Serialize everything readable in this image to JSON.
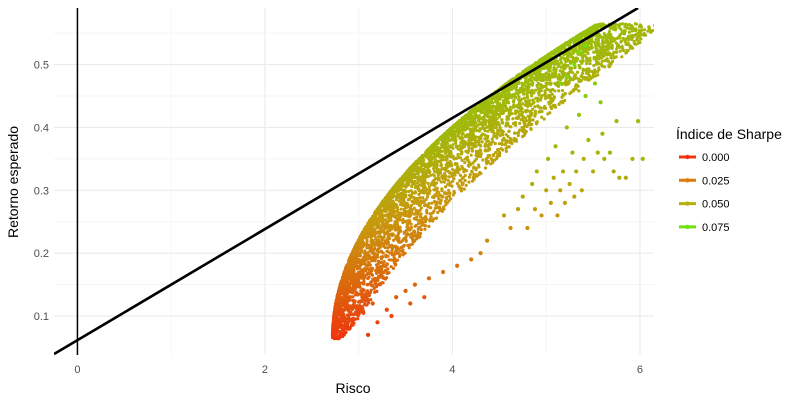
{
  "chart_data": {
    "type": "scatter",
    "xlabel": "Risco",
    "ylabel": "Retorno esperado",
    "xlim": [
      -0.25,
      6.15
    ],
    "ylim": [
      0.038,
      0.59
    ],
    "x_ticks": [
      0,
      2,
      4,
      6
    ],
    "x_tick_labels": [
      "0",
      "2",
      "4",
      "6"
    ],
    "y_ticks": [
      0.1,
      0.2,
      0.3,
      0.4,
      0.5
    ],
    "y_tick_labels": [
      "0.1",
      "0.2",
      "0.3",
      "0.4",
      "0.5"
    ],
    "grid": true,
    "background": "#ffffff",
    "legend": {
      "title": "Índice de Sharpe",
      "position": "right",
      "entries": [
        {
          "label": "0.000",
          "value": 0.0,
          "color": "#f0340f"
        },
        {
          "label": "0.025",
          "value": 0.025,
          "color": "#dc7a0c"
        },
        {
          "label": "0.050",
          "value": 0.05,
          "color": "#b8ae10"
        },
        {
          "label": "0.075",
          "value": 0.075,
          "color": "#6ee20a"
        }
      ]
    },
    "color_scale": {
      "low": "#f0340f",
      "mid": "#c79a0c",
      "high": "#6ee20a",
      "domain": [
        0.0,
        0.082
      ]
    },
    "lines": [
      {
        "name": "vertical-axis-line",
        "x": [
          0,
          0
        ],
        "y": [
          0.038,
          0.59
        ],
        "color": "#000000"
      },
      {
        "name": "capital-market-line",
        "x": [
          -0.25,
          5.98
        ],
        "y": [
          0.0395,
          0.59
        ],
        "color": "#000000"
      }
    ],
    "frontier": {
      "min_risk": 2.72,
      "min_return": 0.064,
      "max_risk": 5.55,
      "max_return": 0.565
    },
    "series": [
      {
        "values": [
          {
            "x": 4.37,
            "y": 0.22,
            "sharpe": 0.035
          },
          {
            "x": 4.55,
            "y": 0.26,
            "sharpe": 0.045
          },
          {
            "x": 4.62,
            "y": 0.24,
            "sharpe": 0.038
          },
          {
            "x": 4.7,
            "y": 0.27,
            "sharpe": 0.046
          },
          {
            "x": 4.75,
            "y": 0.29,
            "sharpe": 0.05
          },
          {
            "x": 4.8,
            "y": 0.24,
            "sharpe": 0.036
          },
          {
            "x": 4.85,
            "y": 0.31,
            "sharpe": 0.052
          },
          {
            "x": 4.88,
            "y": 0.27,
            "sharpe": 0.042
          },
          {
            "x": 4.9,
            "y": 0.33,
            "sharpe": 0.055
          },
          {
            "x": 4.95,
            "y": 0.26,
            "sharpe": 0.04
          },
          {
            "x": 5.0,
            "y": 0.3,
            "sharpe": 0.048
          },
          {
            "x": 5.02,
            "y": 0.35,
            "sharpe": 0.057
          },
          {
            "x": 5.05,
            "y": 0.28,
            "sharpe": 0.043
          },
          {
            "x": 5.08,
            "y": 0.32,
            "sharpe": 0.05
          },
          {
            "x": 5.1,
            "y": 0.37,
            "sharpe": 0.06
          },
          {
            "x": 5.12,
            "y": 0.26,
            "sharpe": 0.039
          },
          {
            "x": 5.15,
            "y": 0.3,
            "sharpe": 0.046
          },
          {
            "x": 5.18,
            "y": 0.33,
            "sharpe": 0.051
          },
          {
            "x": 5.2,
            "y": 0.28,
            "sharpe": 0.043
          },
          {
            "x": 5.22,
            "y": 0.4,
            "sharpe": 0.065
          },
          {
            "x": 5.25,
            "y": 0.31,
            "sharpe": 0.049
          },
          {
            "x": 5.28,
            "y": 0.36,
            "sharpe": 0.056
          },
          {
            "x": 5.3,
            "y": 0.29,
            "sharpe": 0.045
          },
          {
            "x": 5.32,
            "y": 0.33,
            "sharpe": 0.051
          },
          {
            "x": 5.35,
            "y": 0.42,
            "sharpe": 0.066
          },
          {
            "x": 5.38,
            "y": 0.3,
            "sharpe": 0.047
          },
          {
            "x": 5.4,
            "y": 0.35,
            "sharpe": 0.055
          },
          {
            "x": 5.42,
            "y": 0.45,
            "sharpe": 0.07
          },
          {
            "x": 5.45,
            "y": 0.38,
            "sharpe": 0.057
          },
          {
            "x": 5.5,
            "y": 0.33,
            "sharpe": 0.051
          },
          {
            "x": 5.52,
            "y": 0.47,
            "sharpe": 0.072
          },
          {
            "x": 5.55,
            "y": 0.36,
            "sharpe": 0.055
          },
          {
            "x": 5.58,
            "y": 0.44,
            "sharpe": 0.066
          },
          {
            "x": 5.62,
            "y": 0.35,
            "sharpe": 0.054
          },
          {
            "x": 5.68,
            "y": 0.36,
            "sharpe": 0.056
          },
          {
            "x": 5.72,
            "y": 0.33,
            "sharpe": 0.05
          },
          {
            "x": 5.75,
            "y": 0.41,
            "sharpe": 0.06
          },
          {
            "x": 5.78,
            "y": 0.32,
            "sharpe": 0.049
          },
          {
            "x": 5.85,
            "y": 0.32,
            "sharpe": 0.05
          },
          {
            "x": 5.92,
            "y": 0.35,
            "sharpe": 0.055
          },
          {
            "x": 5.98,
            "y": 0.41,
            "sharpe": 0.063
          },
          {
            "x": 6.03,
            "y": 0.35,
            "sharpe": 0.056
          },
          {
            "x": 5.3,
            "y": 0.5,
            "sharpe": 0.079
          },
          {
            "x": 5.35,
            "y": 0.52,
            "sharpe": 0.079
          },
          {
            "x": 5.22,
            "y": 0.48,
            "sharpe": 0.077
          },
          {
            "x": 5.42,
            "y": 0.53,
            "sharpe": 0.08
          },
          {
            "x": 5.6,
            "y": 0.39,
            "sharpe": 0.061
          },
          {
            "x": 5.15,
            "y": 0.47,
            "sharpe": 0.076
          },
          {
            "x": 3.1,
            "y": 0.07,
            "sharpe": 0.002
          },
          {
            "x": 2.9,
            "y": 0.08,
            "sharpe": 0.004
          },
          {
            "x": 3.2,
            "y": 0.09,
            "sharpe": 0.005
          },
          {
            "x": 3.05,
            "y": 0.105,
            "sharpe": 0.01
          },
          {
            "x": 3.3,
            "y": 0.11,
            "sharpe": 0.01
          },
          {
            "x": 3.15,
            "y": 0.12,
            "sharpe": 0.015
          },
          {
            "x": 3.4,
            "y": 0.13,
            "sharpe": 0.015
          },
          {
            "x": 3.5,
            "y": 0.14,
            "sharpe": 0.018
          },
          {
            "x": 3.6,
            "y": 0.15,
            "sharpe": 0.02
          },
          {
            "x": 3.75,
            "y": 0.16,
            "sharpe": 0.022
          },
          {
            "x": 3.9,
            "y": 0.17,
            "sharpe": 0.024
          },
          {
            "x": 4.05,
            "y": 0.18,
            "sharpe": 0.026
          },
          {
            "x": 4.2,
            "y": 0.19,
            "sharpe": 0.028
          },
          {
            "x": 4.3,
            "y": 0.2,
            "sharpe": 0.031
          },
          {
            "x": 3.35,
            "y": 0.1,
            "sharpe": 0.006
          },
          {
            "x": 3.55,
            "y": 0.12,
            "sharpe": 0.012
          },
          {
            "x": 3.7,
            "y": 0.13,
            "sharpe": 0.014
          },
          {
            "x": 2.95,
            "y": 0.095,
            "sharpe": 0.007
          }
        ]
      }
    ]
  }
}
